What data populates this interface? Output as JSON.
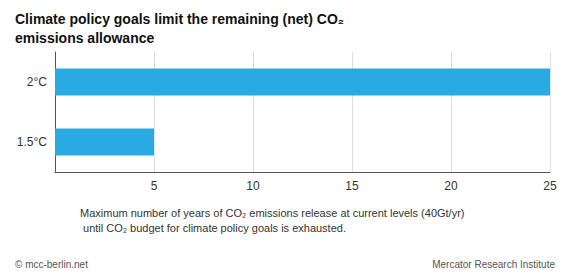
{
  "chart_data": {
    "type": "bar",
    "orientation": "horizontal",
    "title": "Climate policy goals limit the remaining (net) CO₂ emissions allowance",
    "categories": [
      "1.5°C",
      "2°C"
    ],
    "values": [
      5,
      25
    ],
    "color": "#29ABE2",
    "xlim": [
      0,
      25
    ],
    "xticks": [
      5,
      10,
      15,
      20,
      25
    ],
    "grid": true,
    "annotations": [
      "Maximum number of years of CO₂ emissions release at current levels (40Gt/yr) until CO₂ budget for climate policy goals is exhausted.",
      "© mcc-berlin.net",
      "Mercator Research Institute"
    ]
  }
}
